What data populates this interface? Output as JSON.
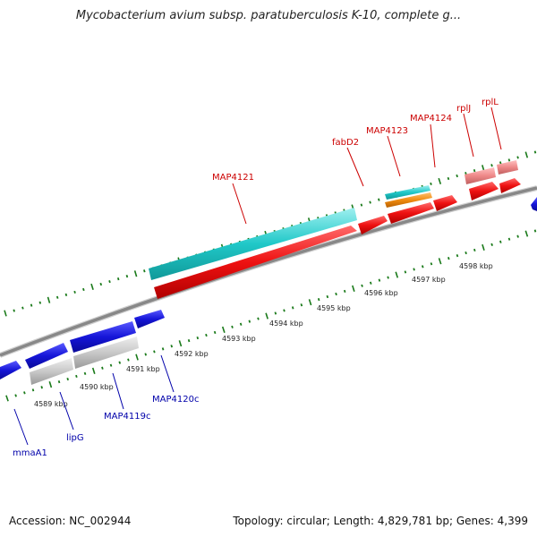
{
  "title": "Mycobacterium avium subsp. paratuberculosis K-10, complete g...",
  "footer": {
    "accession": "Accession: NC_002944",
    "summary": "Topology: circular; Length: 4,829,781 bp; Genes: 4,399"
  },
  "colors": {
    "forward_cds": "#ee1111",
    "forward_light": "#ee8888",
    "reverse_cds": "#1515d8",
    "pseudo_grey": "#c8c8c8",
    "rna_cyan": "#20c8c8",
    "rna_orange": "#f08c10",
    "tick_green": "#1a7a1a",
    "backbone": "#888888",
    "label_forward": "#cc0000",
    "label_reverse": "#0000aa"
  },
  "scale_ticks": [
    "4589 kbp",
    "4590 kbp",
    "4591 kbp",
    "4592 kbp",
    "4593 kbp",
    "4594 kbp",
    "4595 kbp",
    "4596 kbp",
    "4597 kbp",
    "4598 kbp"
  ],
  "gene_labels": {
    "forward": [
      "MAP4121",
      "fabD2",
      "MAP4123",
      "MAP4124",
      "rplJ",
      "rplL"
    ],
    "reverse": [
      "mmaA1",
      "lipG",
      "MAP4119c",
      "MAP4120c"
    ]
  }
}
